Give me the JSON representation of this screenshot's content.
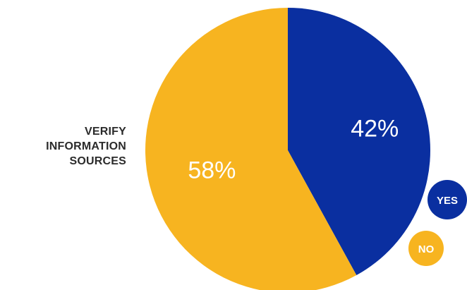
{
  "chart_data": {
    "type": "pie",
    "title": "VERIFY INFORMATION SOURCES",
    "title_lines": [
      "VERIFY",
      "INFORMATION",
      "SOURCES"
    ],
    "slices": [
      {
        "name": "YES",
        "value": 42,
        "label": "42%",
        "color": "#0a2fa0"
      },
      {
        "name": "NO",
        "value": 58,
        "label": "58%",
        "color": "#f7b420"
      }
    ],
    "legend": [
      {
        "label": "YES",
        "color": "#0a2fa0"
      },
      {
        "label": "NO",
        "color": "#f7b420"
      }
    ],
    "legend_position": "bottom-right"
  }
}
